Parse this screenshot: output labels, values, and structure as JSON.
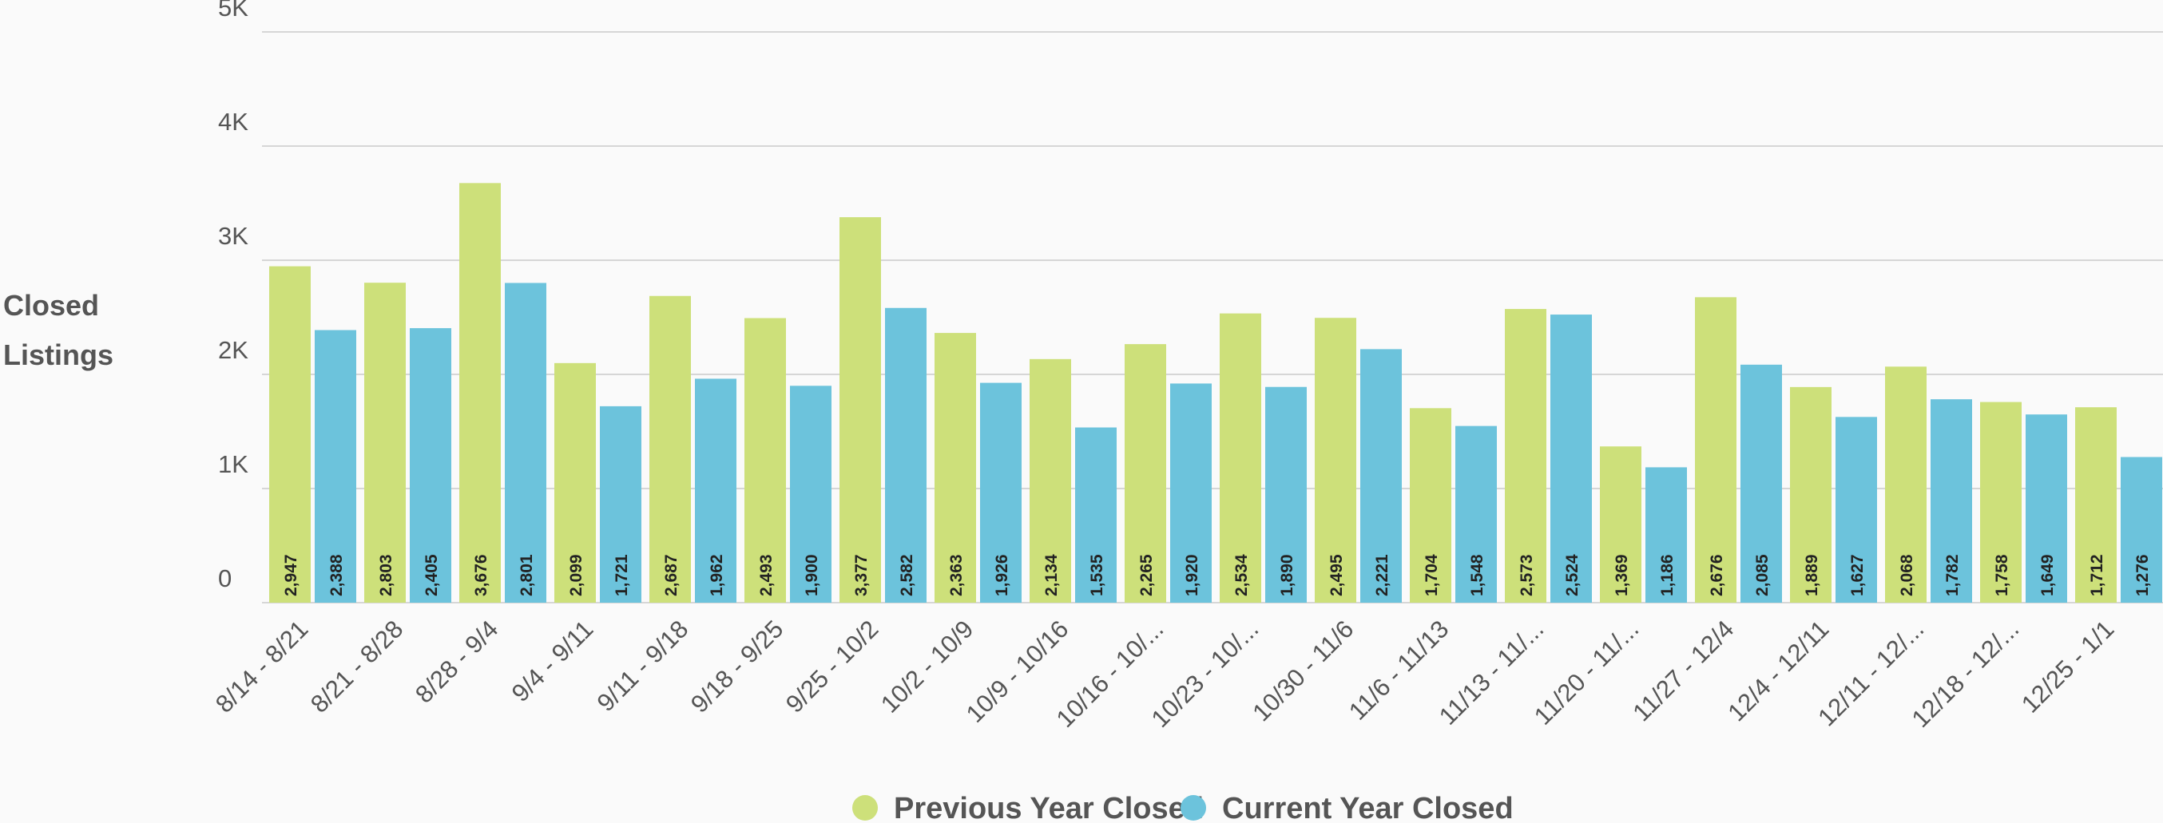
{
  "chart_data": {
    "type": "bar",
    "y_label": "Closed Listings",
    "categories": [
      "8/14 - 8/21",
      "8/21 - 8/28",
      "8/28 - 9/4",
      "9/4 - 9/11",
      "9/11 - 9/18",
      "9/18 - 9/25",
      "9/25 - 10/2",
      "10/2 - 10/9",
      "10/9 - 10/16",
      "10/16 - 10/...",
      "10/23 - 10/...",
      "10/30 - 11/6",
      "11/6 - 11/13",
      "11/13 - 11/...",
      "11/20 - 11/...",
      "11/27 - 12/4",
      "12/4 - 12/11",
      "12/11 - 12/...",
      "12/18 - 12/...",
      "12/25 - 1/1"
    ],
    "series": [
      {
        "name": "Previous Year Closed",
        "color": "#cde07a",
        "values": [
          2947,
          2803,
          3676,
          2099,
          2687,
          2493,
          3377,
          2363,
          2134,
          2265,
          2534,
          2495,
          1704,
          2573,
          1369,
          2676,
          1889,
          2068,
          1758,
          1712
        ],
        "value_labels": [
          "2,947",
          "2,803",
          "3,676",
          "2,099",
          "2,687",
          "2,493",
          "3,377",
          "2,363",
          "2,134",
          "2,265",
          "2,534",
          "2,495",
          "1,704",
          "2,573",
          "1,369",
          "2,676",
          "1,889",
          "2,068",
          "1,758",
          "1,712"
        ]
      },
      {
        "name": "Current Year Closed",
        "color": "#6cc3dc",
        "values": [
          2388,
          2405,
          2801,
          1721,
          1962,
          1900,
          2582,
          1926,
          1535,
          1920,
          1890,
          2221,
          1548,
          2524,
          1186,
          2085,
          1627,
          1782,
          1649,
          1276
        ],
        "value_labels": [
          "2,388",
          "2,405",
          "2,801",
          "1,721",
          "1,962",
          "1,900",
          "2,582",
          "1,926",
          "1,535",
          "1,920",
          "1,890",
          "2,221",
          "1,548",
          "2,524",
          "1,186",
          "2,085",
          "1,627",
          "1,782",
          "1,649",
          "1,276"
        ]
      }
    ],
    "ylim": [
      0,
      5000
    ],
    "yticks": [
      0,
      {
        "value": 1000,
        "label": "1K"
      },
      {
        "value": 2000,
        "label": "2K"
      },
      {
        "value": 3000,
        "label": "3K"
      },
      {
        "value": 4000,
        "label": "4K"
      },
      {
        "value": 5000,
        "label": "5K"
      }
    ],
    "grid": true,
    "legend": "bottom"
  }
}
